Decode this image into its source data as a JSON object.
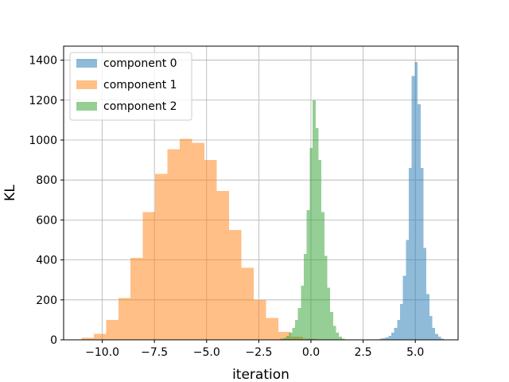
{
  "chart_data": {
    "type": "histogram",
    "title": "",
    "xlabel": "iteration",
    "ylabel": "KL",
    "xlim": [
      -11.85,
      7.05
    ],
    "ylim": [
      0,
      1470
    ],
    "xticks": [
      -10.0,
      -7.5,
      -5.0,
      -2.5,
      0.0,
      2.5,
      5.0
    ],
    "xtick_labels": [
      "−10.0",
      "−7.5",
      "−5.0",
      "−2.5",
      "0.0",
      "2.5",
      "5.0"
    ],
    "yticks": [
      0,
      200,
      400,
      600,
      800,
      1000,
      1200,
      1400
    ],
    "ytick_labels": [
      "0",
      "200",
      "400",
      "600",
      "800",
      "1000",
      "1200",
      "1400"
    ],
    "grid": true,
    "legend_position": "top-left",
    "alpha": 0.5,
    "series": [
      {
        "name": "component 0",
        "color": "#1f77b4",
        "bins": [
          [
            3.15,
            3.29,
            2
          ],
          [
            3.29,
            3.43,
            5
          ],
          [
            3.43,
            3.57,
            8
          ],
          [
            3.57,
            3.71,
            12
          ],
          [
            3.71,
            3.85,
            20
          ],
          [
            3.85,
            3.99,
            35
          ],
          [
            3.99,
            4.13,
            60
          ],
          [
            4.13,
            4.27,
            100
          ],
          [
            4.27,
            4.41,
            180
          ],
          [
            4.41,
            4.55,
            320
          ],
          [
            4.55,
            4.69,
            500
          ],
          [
            4.69,
            4.83,
            860
          ],
          [
            4.83,
            4.97,
            1320
          ],
          [
            4.97,
            5.11,
            1390
          ],
          [
            5.11,
            5.25,
            1180
          ],
          [
            5.25,
            5.39,
            860
          ],
          [
            5.39,
            5.53,
            460
          ],
          [
            5.53,
            5.67,
            230
          ],
          [
            5.67,
            5.81,
            120
          ],
          [
            5.81,
            5.95,
            60
          ],
          [
            5.95,
            6.09,
            30
          ],
          [
            6.09,
            6.23,
            15
          ],
          [
            6.23,
            6.37,
            6
          ],
          [
            6.37,
            6.51,
            2
          ]
        ]
      },
      {
        "name": "component 1",
        "color": "#ff7f0e",
        "bins": [
          [
            -11.0,
            -10.41,
            10
          ],
          [
            -10.41,
            -9.82,
            30
          ],
          [
            -9.82,
            -9.23,
            100
          ],
          [
            -9.23,
            -8.64,
            210
          ],
          [
            -8.64,
            -8.05,
            410
          ],
          [
            -8.05,
            -7.46,
            640
          ],
          [
            -7.46,
            -6.87,
            830
          ],
          [
            -6.87,
            -6.28,
            955
          ],
          [
            -6.28,
            -5.69,
            1005
          ],
          [
            -5.69,
            -5.1,
            985
          ],
          [
            -5.1,
            -4.51,
            900
          ],
          [
            -4.51,
            -3.92,
            745
          ],
          [
            -3.92,
            -3.33,
            550
          ],
          [
            -3.33,
            -2.74,
            360
          ],
          [
            -2.74,
            -2.15,
            200
          ],
          [
            -2.15,
            -1.56,
            110
          ],
          [
            -1.56,
            -0.97,
            40
          ],
          [
            -0.97,
            -0.38,
            15
          ],
          [
            -0.38,
            0.21,
            5
          ]
        ]
      },
      {
        "name": "component 2",
        "color": "#2ca02c",
        "bins": [
          [
            -1.6,
            -1.46,
            2
          ],
          [
            -1.46,
            -1.32,
            5
          ],
          [
            -1.32,
            -1.18,
            10
          ],
          [
            -1.18,
            -1.04,
            20
          ],
          [
            -1.04,
            -0.9,
            35
          ],
          [
            -0.9,
            -0.76,
            60
          ],
          [
            -0.76,
            -0.62,
            100
          ],
          [
            -0.62,
            -0.48,
            160
          ],
          [
            -0.48,
            -0.34,
            270
          ],
          [
            -0.34,
            -0.2,
            430
          ],
          [
            -0.2,
            -0.06,
            650
          ],
          [
            -0.06,
            0.08,
            960
          ],
          [
            0.08,
            0.22,
            1200
          ],
          [
            0.22,
            0.36,
            1060
          ],
          [
            0.36,
            0.5,
            900
          ],
          [
            0.5,
            0.64,
            640
          ],
          [
            0.64,
            0.78,
            420
          ],
          [
            0.78,
            0.92,
            260
          ],
          [
            0.92,
            1.06,
            140
          ],
          [
            1.06,
            1.2,
            70
          ],
          [
            1.2,
            1.34,
            35
          ],
          [
            1.34,
            1.48,
            15
          ],
          [
            1.48,
            1.62,
            5
          ]
        ]
      }
    ]
  }
}
